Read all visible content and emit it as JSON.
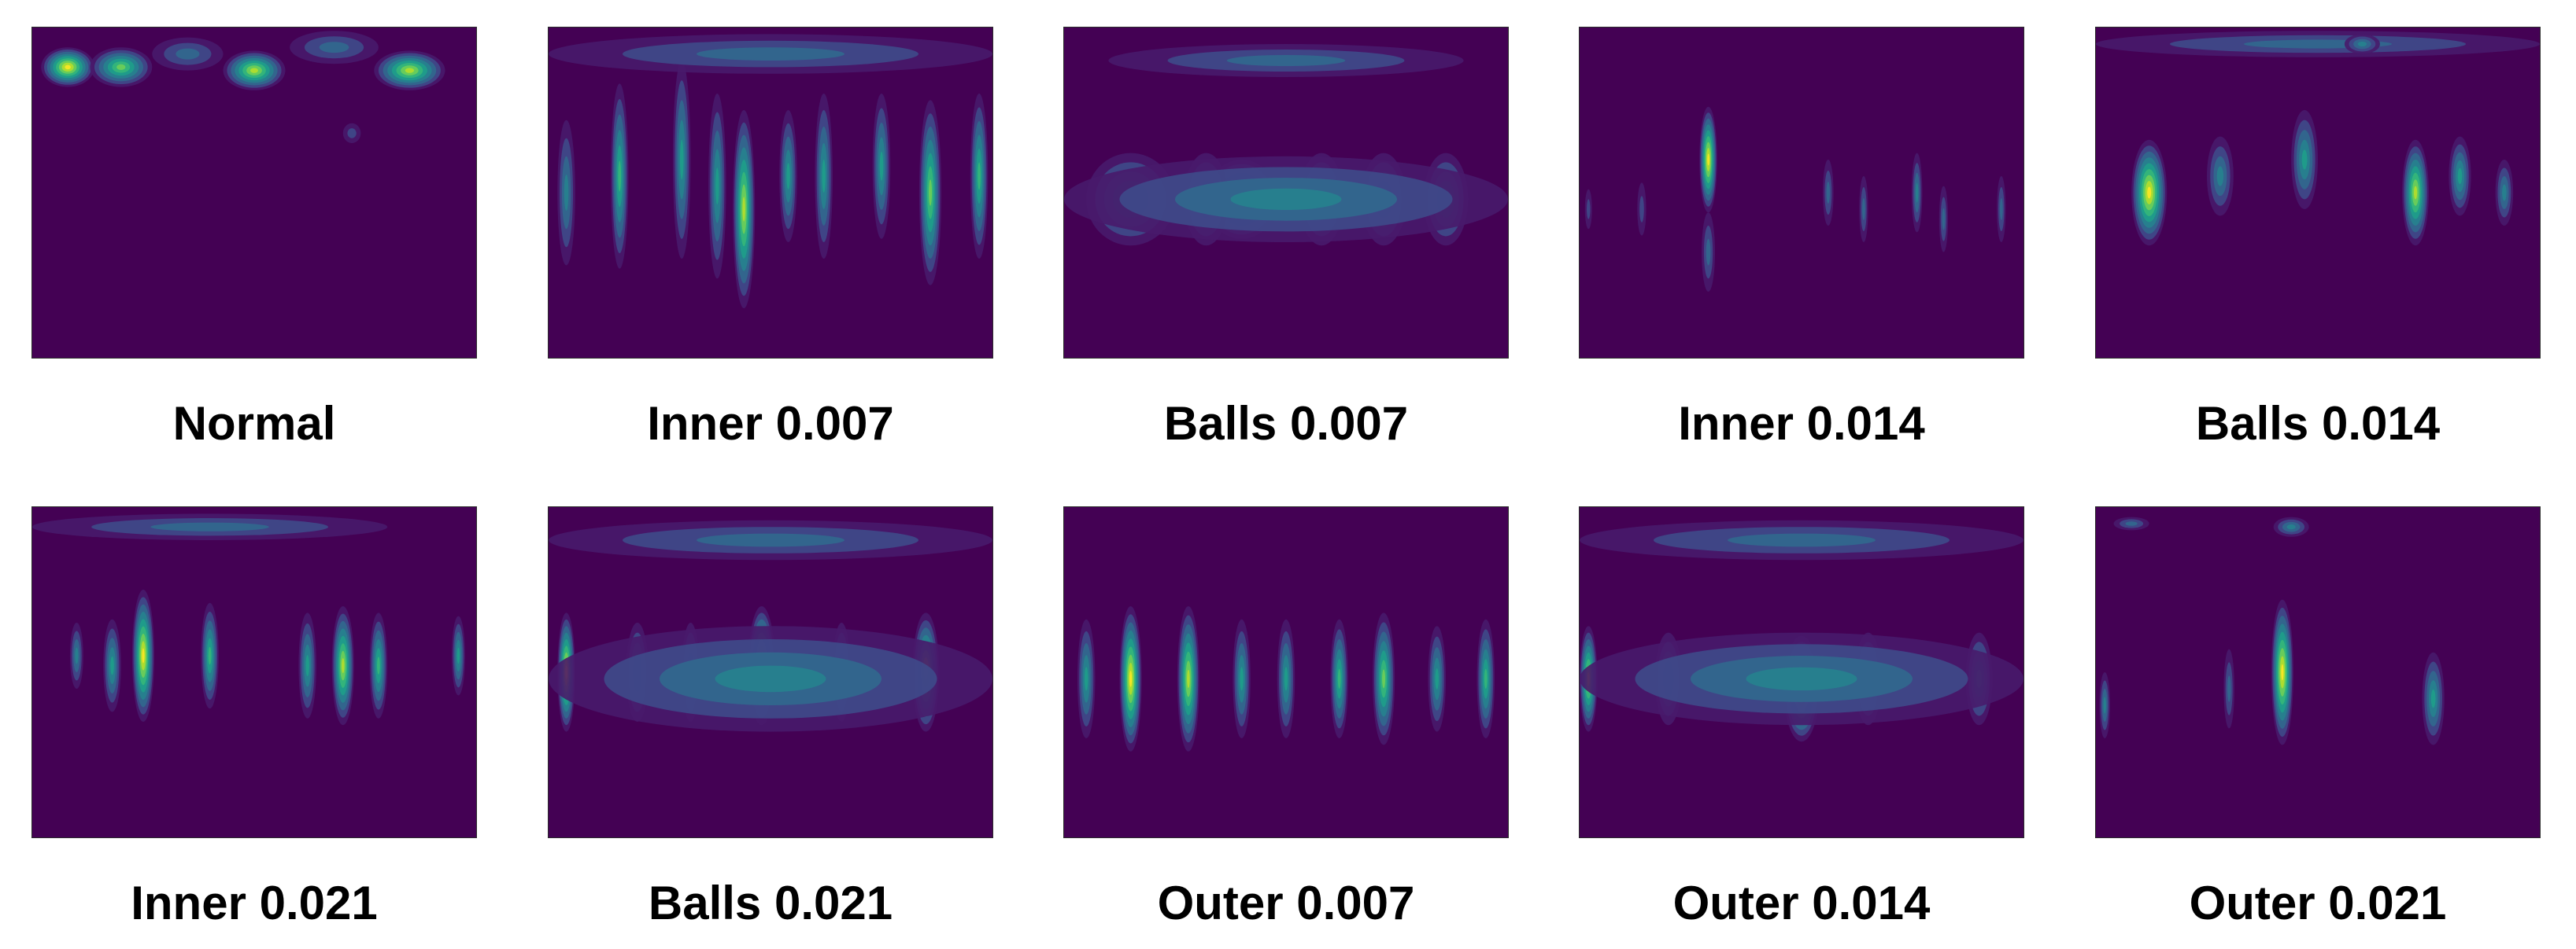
{
  "palette": [
    "#481a6c",
    "#3e4a89",
    "#31688e",
    "#26828e",
    "#1f9e89",
    "#35b779",
    "#6ece58",
    "#b5de2b",
    "#fde725"
  ],
  "chart_data": [
    {
      "type": "heatmap",
      "title": "Normal",
      "blobs": [
        [
          0.08,
          0.12,
          0.06,
          0.06,
          1.0
        ],
        [
          0.2,
          0.12,
          0.07,
          0.06,
          0.75
        ],
        [
          0.5,
          0.13,
          0.07,
          0.06,
          0.85
        ],
        [
          0.85,
          0.13,
          0.08,
          0.06,
          0.9
        ],
        [
          0.35,
          0.08,
          0.08,
          0.05,
          0.3
        ],
        [
          0.68,
          0.06,
          0.1,
          0.05,
          0.3
        ],
        [
          0.72,
          0.32,
          0.02,
          0.03,
          0.25
        ]
      ]
    },
    {
      "type": "heatmap",
      "title": "Inner 0.007",
      "blobs": [
        [
          0.04,
          0.5,
          0.02,
          0.22,
          0.45
        ],
        [
          0.16,
          0.45,
          0.02,
          0.28,
          0.7
        ],
        [
          0.3,
          0.4,
          0.02,
          0.3,
          0.5
        ],
        [
          0.38,
          0.48,
          0.02,
          0.28,
          0.6
        ],
        [
          0.44,
          0.55,
          0.025,
          0.3,
          0.9
        ],
        [
          0.54,
          0.45,
          0.02,
          0.2,
          0.5
        ],
        [
          0.62,
          0.45,
          0.02,
          0.25,
          0.55
        ],
        [
          0.75,
          0.42,
          0.02,
          0.22,
          0.5
        ],
        [
          0.86,
          0.5,
          0.025,
          0.28,
          0.8
        ],
        [
          0.97,
          0.45,
          0.02,
          0.25,
          0.7
        ],
        [
          0.5,
          0.08,
          0.5,
          0.06,
          0.35
        ]
      ]
    },
    {
      "type": "heatmap",
      "title": "Balls 0.007",
      "blobs": [
        [
          0.4,
          0.52,
          0.08,
          0.12,
          1.0
        ],
        [
          0.15,
          0.52,
          0.1,
          0.14,
          0.55
        ],
        [
          0.32,
          0.52,
          0.05,
          0.14,
          0.6
        ],
        [
          0.58,
          0.52,
          0.05,
          0.14,
          0.55
        ],
        [
          0.72,
          0.52,
          0.05,
          0.14,
          0.5
        ],
        [
          0.86,
          0.52,
          0.05,
          0.14,
          0.55
        ],
        [
          0.5,
          0.52,
          0.5,
          0.13,
          0.45
        ],
        [
          0.5,
          0.1,
          0.4,
          0.05,
          0.3
        ]
      ]
    },
    {
      "type": "heatmap",
      "title": "Inner 0.014",
      "blobs": [
        [
          0.29,
          0.4,
          0.02,
          0.16,
          1.0
        ],
        [
          0.29,
          0.68,
          0.015,
          0.12,
          0.35
        ],
        [
          0.02,
          0.55,
          0.008,
          0.06,
          0.25
        ],
        [
          0.14,
          0.55,
          0.01,
          0.08,
          0.25
        ],
        [
          0.56,
          0.5,
          0.012,
          0.1,
          0.35
        ],
        [
          0.64,
          0.55,
          0.01,
          0.1,
          0.3
        ],
        [
          0.76,
          0.5,
          0.012,
          0.12,
          0.4
        ],
        [
          0.82,
          0.58,
          0.01,
          0.1,
          0.35
        ],
        [
          0.95,
          0.55,
          0.01,
          0.1,
          0.3
        ]
      ]
    },
    {
      "type": "heatmap",
      "title": "Balls 0.014",
      "blobs": [
        [
          0.12,
          0.5,
          0.04,
          0.16,
          1.0
        ],
        [
          0.72,
          0.5,
          0.03,
          0.16,
          0.85
        ],
        [
          0.47,
          0.4,
          0.03,
          0.15,
          0.6
        ],
        [
          0.28,
          0.45,
          0.03,
          0.12,
          0.45
        ],
        [
          0.82,
          0.45,
          0.025,
          0.12,
          0.5
        ],
        [
          0.92,
          0.5,
          0.02,
          0.1,
          0.4
        ],
        [
          0.5,
          0.05,
          0.5,
          0.04,
          0.35
        ],
        [
          0.6,
          0.05,
          0.04,
          0.03,
          0.45
        ]
      ]
    },
    {
      "type": "heatmap",
      "title": "Inner 0.021",
      "blobs": [
        [
          0.25,
          0.45,
          0.025,
          0.2,
          1.0
        ],
        [
          0.18,
          0.48,
          0.02,
          0.14,
          0.6
        ],
        [
          0.4,
          0.45,
          0.02,
          0.16,
          0.7
        ],
        [
          0.62,
          0.48,
          0.02,
          0.16,
          0.6
        ],
        [
          0.7,
          0.48,
          0.025,
          0.18,
          0.85
        ],
        [
          0.78,
          0.48,
          0.02,
          0.16,
          0.65
        ],
        [
          0.1,
          0.45,
          0.015,
          0.1,
          0.4
        ],
        [
          0.96,
          0.45,
          0.015,
          0.12,
          0.5
        ],
        [
          0.4,
          0.06,
          0.4,
          0.04,
          0.3
        ]
      ]
    },
    {
      "type": "heatmap",
      "title": "Balls 0.021",
      "blobs": [
        [
          0.04,
          0.5,
          0.02,
          0.18,
          0.95
        ],
        [
          0.48,
          0.48,
          0.03,
          0.18,
          0.95
        ],
        [
          0.85,
          0.5,
          0.03,
          0.18,
          0.9
        ],
        [
          0.2,
          0.5,
          0.025,
          0.15,
          0.6
        ],
        [
          0.32,
          0.5,
          0.02,
          0.15,
          0.55
        ],
        [
          0.66,
          0.5,
          0.02,
          0.15,
          0.55
        ],
        [
          0.5,
          0.52,
          0.5,
          0.16,
          0.4
        ],
        [
          0.5,
          0.1,
          0.5,
          0.06,
          0.35
        ]
      ]
    },
    {
      "type": "heatmap",
      "title": "Outer 0.007",
      "blobs": [
        [
          0.15,
          0.52,
          0.025,
          0.22,
          0.95
        ],
        [
          0.28,
          0.52,
          0.025,
          0.22,
          0.9
        ],
        [
          0.05,
          0.52,
          0.02,
          0.18,
          0.6
        ],
        [
          0.4,
          0.52,
          0.02,
          0.18,
          0.55
        ],
        [
          0.5,
          0.52,
          0.02,
          0.18,
          0.6
        ],
        [
          0.62,
          0.52,
          0.02,
          0.18,
          0.7
        ],
        [
          0.72,
          0.52,
          0.025,
          0.2,
          0.8
        ],
        [
          0.84,
          0.52,
          0.02,
          0.16,
          0.55
        ],
        [
          0.95,
          0.52,
          0.02,
          0.18,
          0.65
        ]
      ]
    },
    {
      "type": "heatmap",
      "title": "Outer 0.014",
      "blobs": [
        [
          0.5,
          0.55,
          0.04,
          0.16,
          1.0
        ],
        [
          0.02,
          0.52,
          0.02,
          0.16,
          0.85
        ],
        [
          0.2,
          0.52,
          0.03,
          0.14,
          0.55
        ],
        [
          0.65,
          0.52,
          0.03,
          0.14,
          0.5
        ],
        [
          0.9,
          0.52,
          0.03,
          0.14,
          0.55
        ],
        [
          0.5,
          0.52,
          0.5,
          0.14,
          0.45
        ],
        [
          0.5,
          0.1,
          0.5,
          0.06,
          0.35
        ]
      ]
    },
    {
      "type": "heatmap",
      "title": "Outer 0.021",
      "blobs": [
        [
          0.42,
          0.5,
          0.025,
          0.22,
          1.0
        ],
        [
          0.76,
          0.58,
          0.025,
          0.14,
          0.5
        ],
        [
          0.3,
          0.55,
          0.012,
          0.12,
          0.35
        ],
        [
          0.02,
          0.6,
          0.012,
          0.1,
          0.4
        ],
        [
          0.44,
          0.06,
          0.04,
          0.03,
          0.45
        ],
        [
          0.08,
          0.05,
          0.04,
          0.02,
          0.3
        ]
      ]
    }
  ]
}
